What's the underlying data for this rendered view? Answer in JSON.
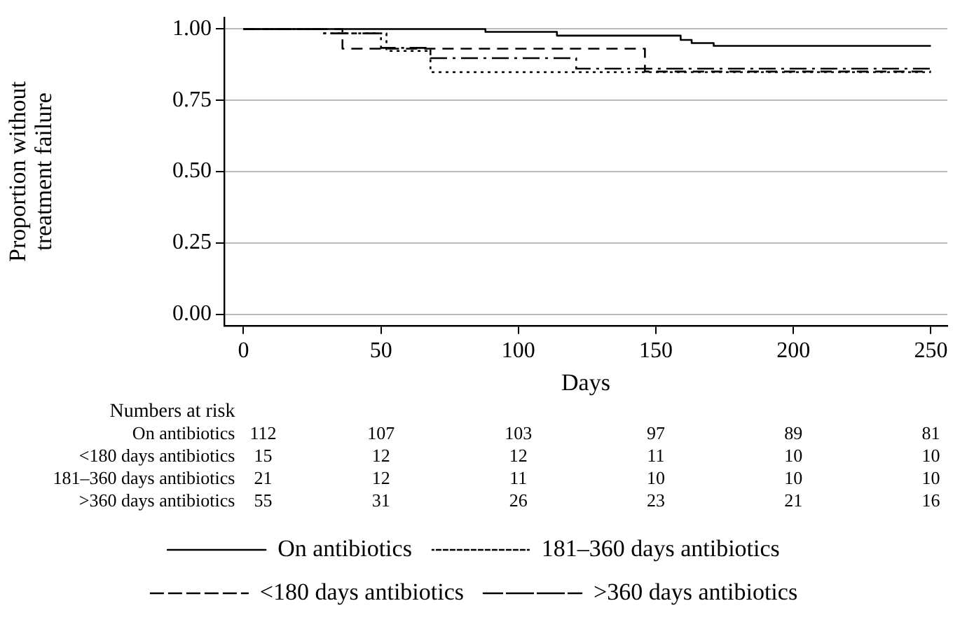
{
  "chart_data": {
    "type": "step",
    "xlabel": "Days",
    "ylabel": "Proportion without\ntreatment failure",
    "xlim": [
      -7,
      256
    ],
    "xticks": [
      0,
      50,
      100,
      150,
      200,
      250
    ],
    "ylim": [
      -0.04,
      1.04
    ],
    "yticks": [
      {
        "value": 0,
        "label": "0.00"
      },
      {
        "value": 0.25,
        "label": "0.25"
      },
      {
        "value": 0.5,
        "label": "0.50"
      },
      {
        "value": 0.75,
        "label": "0.75"
      },
      {
        "value": 1,
        "label": "1.00"
      }
    ],
    "grid": "y",
    "legend": "bottom",
    "marker": "none",
    "series": [
      {
        "name": "On antibiotics",
        "color": "#000000",
        "line_style": "solid",
        "x": [
          0,
          88,
          114,
          159,
          163,
          171,
          250
        ],
        "values": [
          1,
          0.99,
          0.977,
          0.962,
          0.951,
          0.941,
          0.941
        ]
      },
      {
        "name": "181–360 days antibiotics",
        "color": "#000000",
        "line_style": "dotted",
        "x": [
          0,
          29,
          52,
          68,
          250
        ],
        "values": [
          1,
          0.985,
          0.923,
          0.849,
          0.849
        ]
      },
      {
        "name": "<180 days antibiotics",
        "color": "#000000",
        "line_style": "dashed",
        "x": [
          0,
          36,
          146,
          250
        ],
        "values": [
          1,
          0.931,
          0.851,
          0.851
        ]
      },
      {
        "name": ">360 days antibiotics",
        "color": "#000000",
        "line_style": "dashdot",
        "x": [
          0,
          29,
          50,
          68,
          121,
          250
        ],
        "values": [
          1,
          0.985,
          0.934,
          0.898,
          0.861,
          0.861
        ]
      }
    ],
    "annotations": [
      "Numbers at risk",
      "On antibiotics",
      "112",
      "107",
      "103",
      "97",
      "89",
      "81",
      "<180 days antibiotics",
      "15",
      "12",
      "12",
      "11",
      "10",
      "10",
      "181–360 days antibiotics",
      "21",
      "12",
      "11",
      "10",
      "10",
      "10",
      ">360 days antibiotics",
      "55",
      "31",
      "26",
      "23",
      "21",
      "16"
    ]
  }
}
